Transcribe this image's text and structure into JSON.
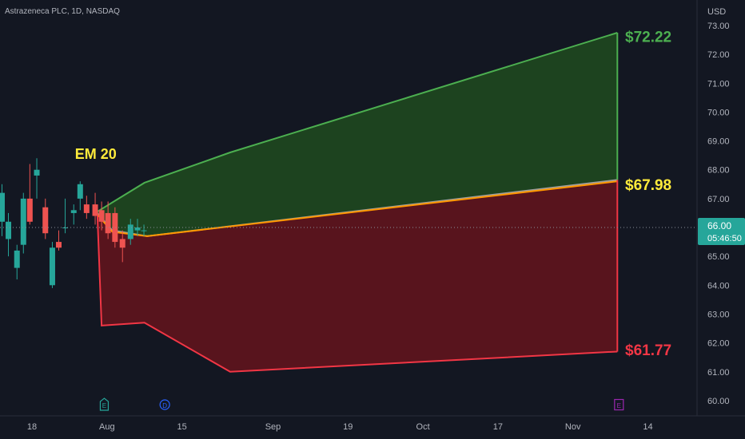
{
  "chart_data": {
    "type": "line",
    "title": "Astrazeneca PLC, 1D, NASDAQ",
    "currency": "USD",
    "ylim": [
      59.6,
      73.4
    ],
    "y_ticks": [
      "60.00",
      "61.00",
      "62.00",
      "63.00",
      "64.00",
      "65.00",
      "66.00",
      "67.00",
      "68.00",
      "69.00",
      "70.00",
      "71.00",
      "72.00",
      "73.00"
    ],
    "x_ticks": [
      {
        "label": "18",
        "day": 0
      },
      {
        "label": "Aug",
        "day": 14
      },
      {
        "label": "15",
        "day": 28
      },
      {
        "label": "Sep",
        "day": 45
      },
      {
        "label": "19",
        "day": 59
      },
      {
        "label": "Oct",
        "day": 73
      },
      {
        "label": "17",
        "day": 87
      },
      {
        "label": "Nov",
        "day": 101
      },
      {
        "label": "14",
        "day": 115
      }
    ],
    "current_price": {
      "value": 66.0,
      "label": "66.00",
      "countdown": "05:46:50",
      "color": "#26a69a"
    },
    "annotation": {
      "text": "EM 20",
      "day": 11.3,
      "price": 68.3,
      "color": "#ffeb3b"
    },
    "candles": [
      {
        "day": -5.6,
        "o": 66.2,
        "h": 67.5,
        "l": 65.7,
        "c": 67.2
      },
      {
        "day": -4.4,
        "o": 65.6,
        "h": 66.5,
        "l": 65.0,
        "c": 66.2
      },
      {
        "day": -2.8,
        "o": 64.6,
        "h": 65.4,
        "l": 64.2,
        "c": 65.2
      },
      {
        "day": -1.6,
        "o": 65.4,
        "h": 67.2,
        "l": 65.1,
        "c": 67.0
      },
      {
        "day": -0.4,
        "o": 67.0,
        "h": 68.2,
        "l": 66.1,
        "c": 66.2
      },
      {
        "day": 0.9,
        "o": 67.8,
        "h": 68.4,
        "l": 67.0,
        "c": 68.0
      },
      {
        "day": 2.5,
        "o": 66.7,
        "h": 67.0,
        "l": 65.6,
        "c": 65.8
      },
      {
        "day": 3.8,
        "o": 64.0,
        "h": 65.5,
        "l": 63.9,
        "c": 65.3
      },
      {
        "day": 5.0,
        "o": 65.5,
        "h": 65.9,
        "l": 65.2,
        "c": 65.3
      },
      {
        "day": 6.2,
        "o": 66.0,
        "h": 67.0,
        "l": 65.8,
        "c": 66.0
      },
      {
        "day": 7.8,
        "o": 66.5,
        "h": 66.8,
        "l": 66.1,
        "c": 66.6
      },
      {
        "day": 9.0,
        "o": 67.0,
        "h": 67.6,
        "l": 66.6,
        "c": 67.5
      },
      {
        "day": 10.2,
        "o": 66.8,
        "h": 67.1,
        "l": 66.3,
        "c": 66.5
      },
      {
        "day": 11.8,
        "o": 66.8,
        "h": 67.2,
        "l": 66.1,
        "c": 66.4
      },
      {
        "day": 13.0,
        "o": 66.6,
        "h": 66.9,
        "l": 65.9,
        "c": 66.2
      },
      {
        "day": 14.2,
        "o": 66.5,
        "h": 66.9,
        "l": 65.6,
        "c": 65.8
      },
      {
        "day": 15.5,
        "o": 66.5,
        "h": 66.7,
        "l": 65.3,
        "c": 65.5
      },
      {
        "day": 16.9,
        "o": 65.6,
        "h": 65.9,
        "l": 64.8,
        "c": 65.3
      },
      {
        "day": 18.4,
        "o": 65.6,
        "h": 66.3,
        "l": 65.4,
        "c": 66.1
      },
      {
        "day": 19.7,
        "o": 65.9,
        "h": 66.3,
        "l": 65.7,
        "c": 66.0
      },
      {
        "day": 20.9,
        "o": 65.9,
        "h": 66.1,
        "l": 65.7,
        "c": 65.9
      }
    ],
    "series": [
      {
        "color": "#4caf50",
        "points": [
          [
            12.2,
            66.55
          ],
          [
            21.0,
            67.55
          ],
          [
            37.0,
            68.6
          ],
          [
            109.3,
            72.75
          ]
        ]
      },
      {
        "color": "#9e9e9e",
        "points": [
          [
            12.2,
            66.5
          ],
          [
            15.0,
            65.9
          ],
          [
            21.5,
            65.7
          ],
          [
            109.3,
            67.65
          ]
        ]
      },
      {
        "color": "#ff9800",
        "points": [
          [
            12.2,
            66.45
          ],
          [
            15.0,
            65.85
          ],
          [
            21.5,
            65.7
          ],
          [
            109.3,
            67.6
          ]
        ]
      },
      {
        "color": "#f23645",
        "points": [
          [
            12.2,
            66.5
          ],
          [
            13.0,
            62.6
          ],
          [
            21.0,
            62.7
          ],
          [
            37.0,
            61.0
          ],
          [
            109.3,
            61.7
          ]
        ]
      }
    ],
    "labels": [
      {
        "text": "$72.22",
        "price": 72.62,
        "color": "#4caf50"
      },
      {
        "text": "$67.98",
        "price": 67.5,
        "color": "#ffeb3b"
      },
      {
        "text": "$61.77",
        "price": 61.77,
        "color": "#f23645"
      }
    ],
    "events": [
      {
        "letter": "E",
        "day": 13.5,
        "shape": "diamond",
        "color": "#26a69a"
      },
      {
        "letter": "D",
        "day": 24.8,
        "shape": "circle",
        "color": "#2962ff"
      },
      {
        "letter": "E",
        "day": 109.6,
        "shape": "square",
        "color": "#9c27b0"
      }
    ]
  }
}
